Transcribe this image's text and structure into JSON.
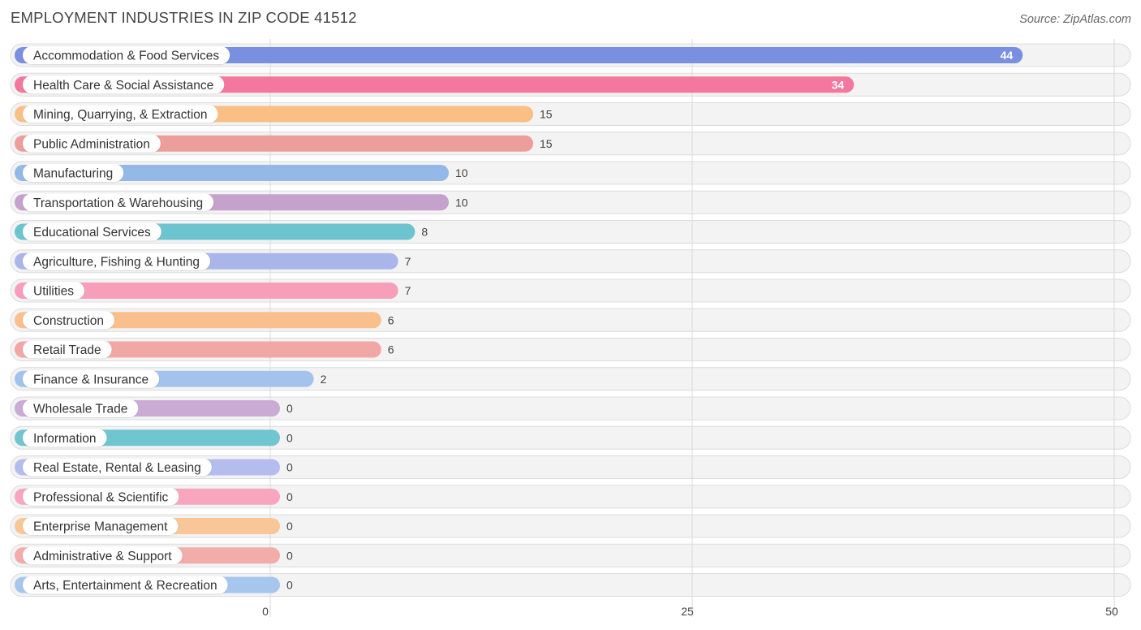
{
  "title": "EMPLOYMENT INDUSTRIES IN ZIP CODE 41512",
  "source": "Source: ZipAtlas.com",
  "chart_data": {
    "type": "bar",
    "orientation": "horizontal",
    "categories": [
      "Accommodation & Food Services",
      "Health Care & Social Assistance",
      "Mining, Quarrying, & Extraction",
      "Public Administration",
      "Manufacturing",
      "Transportation & Warehousing",
      "Educational Services",
      "Agriculture, Fishing & Hunting",
      "Utilities",
      "Construction",
      "Retail Trade",
      "Finance & Insurance",
      "Wholesale Trade",
      "Information",
      "Real Estate, Rental & Leasing",
      "Professional & Scientific",
      "Enterprise Management",
      "Administrative & Support",
      "Arts, Entertainment & Recreation"
    ],
    "values": [
      44,
      34,
      15,
      15,
      10,
      10,
      8,
      7,
      7,
      6,
      6,
      2,
      0,
      0,
      0,
      0,
      0,
      0,
      0
    ],
    "colors": [
      "#7b8fe0",
      "#f3779e",
      "#f9bf85",
      "#ec9e9b",
      "#94b8e8",
      "#c4a2cb",
      "#6ec4ce",
      "#aab5ea",
      "#f79ebb",
      "#f9c08d",
      "#f1a7a5",
      "#a3c3ec",
      "#c9abd4",
      "#6fc6cf",
      "#b4bdee",
      "#f8a5c0",
      "#f9c698",
      "#f2adab",
      "#a7c6ee"
    ],
    "xticks": [
      0,
      25,
      50
    ],
    "xlim": [
      0,
      50
    ],
    "grid": true
  }
}
